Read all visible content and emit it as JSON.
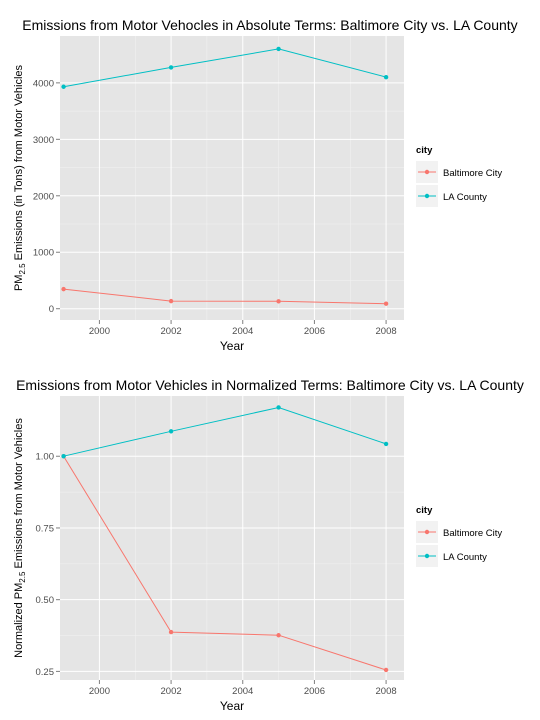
{
  "chart_data": [
    {
      "type": "line",
      "title": "Emissions from Motor Vehocles in Absolute Terms: Baltimore City vs. LA County",
      "xlabel": "Year",
      "ylabel_prefix": "PM",
      "ylabel_sub": "2.5",
      "ylabel_suffix": " Emissions (in Tons) from Motor Vehicles",
      "x": [
        1999,
        2002,
        2005,
        2008
      ],
      "xlim": [
        1998.9,
        2008.5
      ],
      "ylim": [
        -200,
        4830
      ],
      "xticks": [
        2000,
        2002,
        2004,
        2006,
        2008
      ],
      "yticks": [
        0,
        1000,
        2000,
        3000,
        4000
      ],
      "ytick_labels": [
        "0",
        "1000",
        "2000",
        "3000",
        "4000"
      ],
      "grid": true,
      "legend_position": "right",
      "legend_title": "city",
      "series": [
        {
          "name": "Baltimore City",
          "color": "#F8766D",
          "values": [
            346.8,
            134.3,
            130.4,
            88.3
          ]
        },
        {
          "name": "LA County",
          "color": "#00BFC4",
          "values": [
            3931.1,
            4274.0,
            4601.4,
            4101.3
          ]
        }
      ]
    },
    {
      "type": "line",
      "title": "Emissions from Motor Vehicles in Normalized Terms: Baltimore City vs. LA County",
      "xlabel": "Year",
      "ylabel_prefix": "Normalized PM",
      "ylabel_sub": "2.5",
      "ylabel_suffix": " Emissions from Motor Vehicles",
      "x": [
        1999,
        2002,
        2005,
        2008
      ],
      "xlim": [
        1998.9,
        2008.5
      ],
      "ylim": [
        0.22,
        1.21
      ],
      "xticks": [
        2000,
        2002,
        2004,
        2006,
        2008
      ],
      "yticks": [
        0.25,
        0.5,
        0.75,
        1.0
      ],
      "ytick_labels": [
        "0.25",
        "0.50",
        "0.75",
        "1.00"
      ],
      "grid": true,
      "legend_position": "right",
      "legend_title": "city",
      "series": [
        {
          "name": "Baltimore City",
          "color": "#F8766D",
          "values": [
            1.0,
            0.387,
            0.376,
            0.255
          ]
        },
        {
          "name": "LA County",
          "color": "#00BFC4",
          "values": [
            1.0,
            1.087,
            1.17,
            1.043
          ]
        }
      ]
    }
  ]
}
